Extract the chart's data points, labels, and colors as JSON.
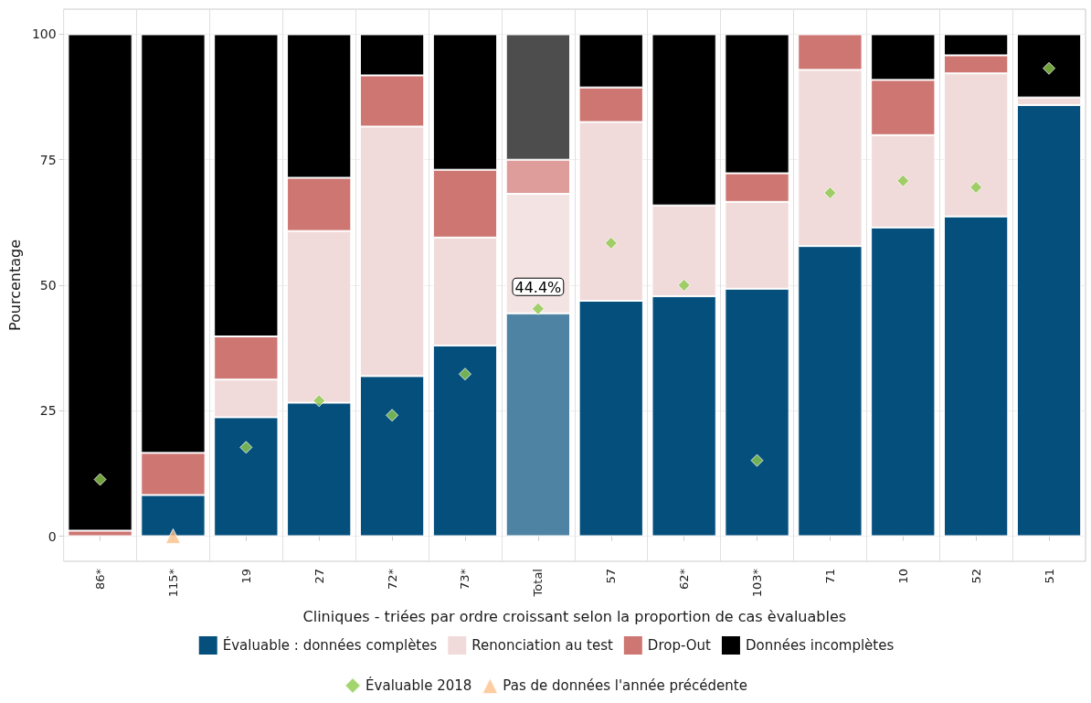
{
  "chart_data": {
    "type": "bar",
    "stacked": true,
    "xlabel": "Cliniques - triées par ordre croissant selon la proportion de cas èvaluables",
    "ylabel": "Pourcentage",
    "categories": [
      "86*",
      "115*",
      "19",
      "27",
      "72*",
      "73*",
      "Total",
      "57",
      "62*",
      "103*",
      "71",
      "10",
      "52",
      "51"
    ],
    "ylim": [
      -5,
      105
    ],
    "yticks": [
      0,
      25,
      50,
      75,
      100
    ],
    "grid": true,
    "legend": "bottom",
    "series": [
      {
        "name": "Évaluable : données complètes",
        "color": "#054f7d",
        "colors": [
          "#054f7d",
          "#054f7d",
          "#054f7d",
          "#054f7d",
          "#054f7d",
          "#054f7d",
          "#4f83a3",
          "#054f7d",
          "#054f7d",
          "#054f7d",
          "#054f7d",
          "#054f7d",
          "#054f7d",
          "#054f7d"
        ],
        "values": [
          0,
          8.2,
          23.7,
          26.6,
          31.9,
          38.0,
          44.4,
          46.9,
          47.8,
          49.3,
          57.8,
          61.5,
          63.7,
          85.9
        ],
        "value_labels": [
          null,
          null,
          null,
          null,
          null,
          null,
          "44.4%",
          null,
          null,
          null,
          null,
          null,
          null,
          null
        ]
      },
      {
        "name": "Renonciation au test",
        "color": "#f1dada",
        "colors": [
          "#f1dada",
          "#f1dada",
          "#f1dada",
          "#f1dada",
          "#f1dada",
          "#f1dada",
          "#f4e3e3",
          "#f1dada",
          "#f1dada",
          "#f1dada",
          "#f1dada",
          "#f1dada",
          "#f1dada",
          "#f1dada"
        ],
        "values": [
          0,
          0,
          7.5,
          34.2,
          49.7,
          21.5,
          23.8,
          35.6,
          18.1,
          17.3,
          35.1,
          18.4,
          28.5,
          1.5
        ]
      },
      {
        "name": "Drop-Out",
        "color": "#cd7672",
        "colors": [
          "#cd7672",
          "#cd7672",
          "#cd7672",
          "#cd7672",
          "#cd7672",
          "#cd7672",
          "#de9c9a",
          "#cd7672",
          "#cd7672",
          "#cd7672",
          "#cd7672",
          "#cd7672",
          "#cd7672",
          "#cd7672"
        ],
        "values": [
          1.1,
          8.4,
          8.6,
          10.6,
          10.2,
          13.5,
          6.8,
          6.9,
          0,
          5.7,
          7.1,
          11.0,
          3.6,
          0
        ]
      },
      {
        "name": "Données incomplètes",
        "color": "#000000",
        "colors": [
          "#000000",
          "#000000",
          "#000000",
          "#000000",
          "#000000",
          "#000000",
          "#4d4d4d",
          "#000000",
          "#000000",
          "#000000",
          "#000000",
          "#000000",
          "#000000",
          "#000000"
        ],
        "values": [
          98.9,
          83.4,
          60.2,
          28.6,
          8.2,
          27.0,
          25.0,
          10.6,
          34.1,
          27.7,
          0,
          9.1,
          4.2,
          12.6
        ]
      },
      {
        "type": "scatter",
        "name": "Évaluable 2018",
        "color": "#8cc94a",
        "marker": "diamond",
        "x": [
          "86*",
          "19",
          "27",
          "72*",
          "73*",
          "Total",
          "57",
          "62*",
          "103*",
          "71",
          "10",
          "52",
          "51"
        ],
        "values": [
          11.3,
          17.7,
          27.0,
          24.1,
          32.3,
          45.3,
          58.4,
          50.0,
          15.1,
          68.4,
          70.8,
          69.5,
          93.2
        ]
      },
      {
        "type": "scatter",
        "name": "Pas de données l'année précédente",
        "color": "#fdbf8a",
        "marker": "triangle",
        "x": [
          "115*"
        ],
        "values": [
          0
        ]
      }
    ]
  }
}
